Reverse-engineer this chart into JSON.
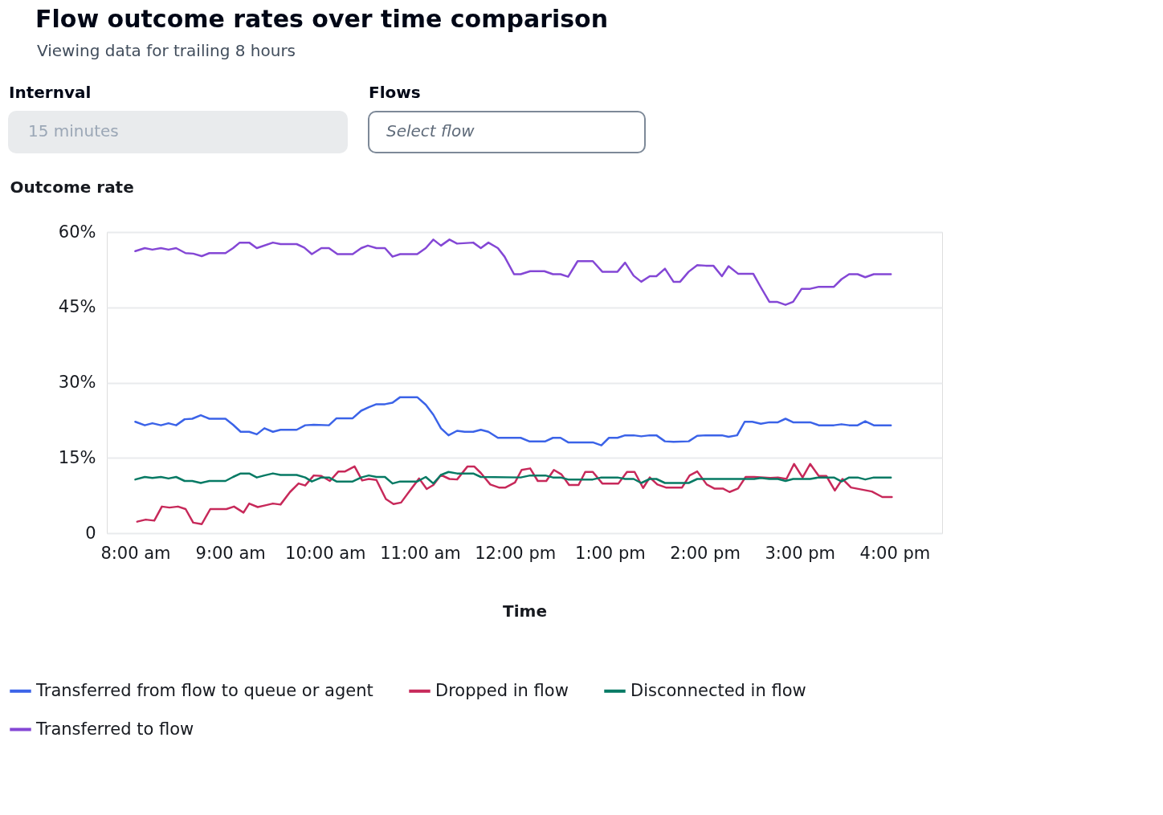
{
  "chart_data": {
    "type": "line",
    "title": "Flow outcome rates over time comparison",
    "subtitle": "Viewing data for trailing 8 hours",
    "annotations": [
      "Internval",
      "15 minutes",
      "Flows",
      "Select flow"
    ],
    "xlabel": "Time",
    "ylabel": "Outcome rate",
    "xlim": [
      7.7,
      16.5
    ],
    "ylim": [
      0,
      60
    ],
    "xticks": [
      {
        "value": 8,
        "label": "8:00 am"
      },
      {
        "value": 9,
        "label": "9:00 am"
      },
      {
        "value": 10,
        "label": "10:00 am"
      },
      {
        "value": 11,
        "label": "11:00 am"
      },
      {
        "value": 12,
        "label": "12:00 pm"
      },
      {
        "value": 13,
        "label": "1:00 pm"
      },
      {
        "value": 14,
        "label": "2:00 pm"
      },
      {
        "value": 15,
        "label": "3:00 pm"
      },
      {
        "value": 16,
        "label": "4:00 pm"
      }
    ],
    "yticks": [
      0,
      {
        "value": 15,
        "label": "15%"
      },
      {
        "value": 30,
        "label": "30%"
      },
      {
        "value": 45,
        "label": "45%"
      },
      {
        "value": 60,
        "label": "60%"
      }
    ],
    "grid": "y",
    "legend": "bottom",
    "line_style": "solid",
    "series": [
      {
        "name": "Transferred from flow to queue or agent",
        "color": "#3b63e8",
        "x": [
          8.0,
          8.1,
          8.18,
          8.27,
          8.35,
          8.43,
          8.52,
          8.6,
          8.69,
          8.78,
          8.95,
          9.03,
          9.11,
          9.2,
          9.28,
          9.36,
          9.45,
          9.53,
          9.7,
          9.79,
          9.88,
          10.04,
          10.12,
          10.29,
          10.38,
          10.46,
          10.54,
          10.63,
          10.71,
          10.79,
          10.97,
          11.06,
          11.14,
          11.22,
          11.3,
          11.39,
          11.47,
          11.56,
          11.64,
          11.72,
          11.82,
          12.06,
          12.15,
          12.32,
          12.4,
          12.48,
          12.56,
          12.82,
          12.91,
          12.99,
          13.08,
          13.16,
          13.25,
          13.33,
          13.42,
          13.49,
          13.58,
          13.67,
          13.83,
          13.92,
          14.01,
          14.18,
          14.25,
          14.34,
          14.42,
          14.5,
          14.59,
          14.68,
          14.77,
          14.85,
          14.93,
          15.11,
          15.2,
          15.36,
          15.44,
          15.52,
          15.61,
          15.69,
          15.78,
          15.96
        ],
        "values": [
          22.2,
          21.5,
          21.9,
          21.5,
          21.9,
          21.5,
          22.7,
          22.8,
          23.5,
          22.8,
          22.8,
          21.6,
          20.2,
          20.2,
          19.7,
          20.9,
          20.2,
          20.6,
          20.6,
          21.5,
          21.6,
          21.5,
          22.9,
          22.9,
          24.4,
          25.1,
          25.7,
          25.7,
          26.0,
          27.1,
          27.1,
          25.6,
          23.6,
          20.9,
          19.5,
          20.4,
          20.2,
          20.2,
          20.6,
          20.2,
          19.0,
          19.0,
          18.3,
          18.3,
          19.0,
          19.0,
          18.1,
          18.1,
          17.5,
          19.0,
          19.0,
          19.5,
          19.5,
          19.3,
          19.5,
          19.5,
          18.3,
          18.2,
          18.3,
          19.4,
          19.5,
          19.5,
          19.2,
          19.5,
          22.2,
          22.2,
          21.8,
          22.1,
          22.1,
          22.8,
          22.1,
          22.1,
          21.5,
          21.5,
          21.7,
          21.5,
          21.5,
          22.3,
          21.5,
          21.5
        ]
      },
      {
        "name": "Dropped in flow",
        "color": "#c7295a",
        "x": [
          8.02,
          8.11,
          8.2,
          8.28,
          8.36,
          8.45,
          8.53,
          8.61,
          8.7,
          8.79,
          8.96,
          9.04,
          9.14,
          9.2,
          9.29,
          9.36,
          9.45,
          9.53,
          9.63,
          9.72,
          9.79,
          9.88,
          9.96,
          10.05,
          10.14,
          10.21,
          10.31,
          10.39,
          10.46,
          10.54,
          10.64,
          10.72,
          10.8,
          10.89,
          10.99,
          11.07,
          11.14,
          11.22,
          11.31,
          11.39,
          11.5,
          11.57,
          11.64,
          11.74,
          11.83,
          11.9,
          12.0,
          12.07,
          12.16,
          12.24,
          12.33,
          12.41,
          12.49,
          12.57,
          12.67,
          12.74,
          12.82,
          12.92,
          13.09,
          13.18,
          13.26,
          13.35,
          13.42,
          13.5,
          13.59,
          13.76,
          13.84,
          13.92,
          14.02,
          14.1,
          14.19,
          14.26,
          14.35,
          14.43,
          14.52,
          14.69,
          14.77,
          14.86,
          14.94,
          15.03,
          15.11,
          15.2,
          15.28,
          15.37,
          15.45,
          15.54,
          15.76,
          15.87,
          15.97
        ],
        "values": [
          2.3,
          2.7,
          2.5,
          5.3,
          5.1,
          5.3,
          4.8,
          2.1,
          1.8,
          4.8,
          4.8,
          5.3,
          4.1,
          5.9,
          5.2,
          5.5,
          5.9,
          5.7,
          8.2,
          9.9,
          9.5,
          11.5,
          11.4,
          10.4,
          12.3,
          12.3,
          13.3,
          10.5,
          10.8,
          10.6,
          6.8,
          5.8,
          6.1,
          8.4,
          10.9,
          8.8,
          9.6,
          11.6,
          10.8,
          10.7,
          13.3,
          13.3,
          12.0,
          9.7,
          9.1,
          9.1,
          10.1,
          12.6,
          12.9,
          10.4,
          10.4,
          12.6,
          11.7,
          9.6,
          9.6,
          12.2,
          12.2,
          9.9,
          9.9,
          12.2,
          12.2,
          9.0,
          11.1,
          9.7,
          9.1,
          9.1,
          11.5,
          12.3,
          9.7,
          8.9,
          8.9,
          8.2,
          8.9,
          11.2,
          11.2,
          11.0,
          11.1,
          10.8,
          13.8,
          11.1,
          13.8,
          11.4,
          11.4,
          8.5,
          10.8,
          9.1,
          8.3,
          7.2,
          7.2
        ]
      },
      {
        "name": "Disconnected in flow",
        "color": "#067a64",
        "x": [
          8.0,
          8.1,
          8.18,
          8.27,
          8.35,
          8.43,
          8.52,
          8.6,
          8.69,
          8.78,
          8.95,
          9.03,
          9.11,
          9.2,
          9.28,
          9.36,
          9.45,
          9.53,
          9.7,
          9.79,
          9.86,
          9.96,
          10.04,
          10.12,
          10.29,
          10.38,
          10.46,
          10.54,
          10.63,
          10.71,
          10.79,
          10.97,
          11.06,
          11.14,
          11.22,
          11.3,
          11.39,
          11.56,
          11.64,
          12.06,
          12.16,
          12.32,
          12.4,
          12.48,
          12.56,
          12.82,
          12.91,
          13.08,
          13.16,
          13.25,
          13.33,
          13.42,
          13.49,
          13.58,
          13.83,
          13.92,
          14.52,
          14.59,
          14.68,
          14.77,
          14.85,
          14.93,
          15.11,
          15.2,
          15.36,
          15.44,
          15.52,
          15.61,
          15.69,
          15.78,
          15.96
        ],
        "values": [
          10.7,
          11.2,
          11.0,
          11.2,
          10.9,
          11.2,
          10.4,
          10.4,
          10.0,
          10.4,
          10.4,
          11.2,
          11.9,
          11.9,
          11.1,
          11.5,
          11.9,
          11.6,
          11.6,
          11.1,
          10.3,
          11.1,
          11.1,
          10.3,
          10.3,
          11.1,
          11.5,
          11.2,
          11.2,
          9.9,
          10.3,
          10.3,
          11.2,
          9.9,
          11.6,
          12.2,
          11.9,
          11.9,
          11.2,
          11.1,
          11.5,
          11.5,
          11.1,
          11.1,
          10.7,
          10.7,
          11.1,
          11.1,
          10.8,
          10.8,
          10.0,
          10.8,
          10.8,
          10.0,
          10.0,
          10.8,
          10.8,
          11.0,
          10.8,
          10.8,
          10.4,
          10.8,
          10.8,
          11.1,
          11.1,
          10.3,
          11.1,
          11.1,
          10.7,
          11.1,
          11.1
        ]
      },
      {
        "name": "Transferred to flow",
        "color": "#8447d5",
        "x": [
          8.0,
          8.1,
          8.18,
          8.27,
          8.35,
          8.43,
          8.53,
          8.61,
          8.7,
          8.78,
          8.95,
          9.03,
          9.1,
          9.2,
          9.28,
          9.45,
          9.53,
          9.7,
          9.78,
          9.86,
          9.96,
          10.04,
          10.13,
          10.29,
          10.38,
          10.45,
          10.54,
          10.63,
          10.71,
          10.79,
          10.97,
          11.06,
          11.14,
          11.22,
          11.31,
          11.39,
          11.56,
          11.64,
          11.72,
          11.82,
          11.89,
          11.99,
          12.06,
          12.16,
          12.31,
          12.4,
          12.48,
          12.56,
          12.66,
          12.82,
          12.92,
          13.08,
          13.16,
          13.25,
          13.33,
          13.42,
          13.49,
          13.58,
          13.67,
          13.74,
          13.83,
          13.92,
          14.01,
          14.09,
          14.18,
          14.25,
          14.35,
          14.51,
          14.59,
          14.68,
          14.76,
          14.85,
          14.93,
          15.02,
          15.11,
          15.2,
          15.36,
          15.44,
          15.52,
          15.61,
          15.69,
          15.78,
          15.96
        ],
        "values": [
          56.2,
          56.8,
          56.5,
          56.8,
          56.5,
          56.8,
          55.8,
          55.7,
          55.2,
          55.8,
          55.8,
          56.8,
          57.9,
          57.9,
          56.8,
          57.9,
          57.6,
          57.6,
          56.9,
          55.6,
          56.8,
          56.8,
          55.6,
          55.6,
          56.8,
          57.3,
          56.8,
          56.8,
          55.1,
          55.6,
          55.6,
          56.8,
          58.5,
          57.3,
          58.5,
          57.7,
          57.9,
          56.8,
          57.9,
          56.8,
          55.1,
          51.6,
          51.6,
          52.2,
          52.2,
          51.6,
          51.6,
          51.1,
          54.2,
          54.2,
          52.1,
          52.1,
          53.9,
          51.3,
          50.1,
          51.2,
          51.2,
          52.7,
          50.1,
          50.1,
          52.1,
          53.4,
          53.3,
          53.3,
          51.2,
          53.2,
          51.7,
          51.7,
          49.0,
          46.1,
          46.1,
          45.5,
          46.1,
          48.7,
          48.7,
          49.1,
          49.1,
          50.6,
          51.6,
          51.6,
          51.0,
          51.6,
          51.6
        ]
      }
    ]
  }
}
